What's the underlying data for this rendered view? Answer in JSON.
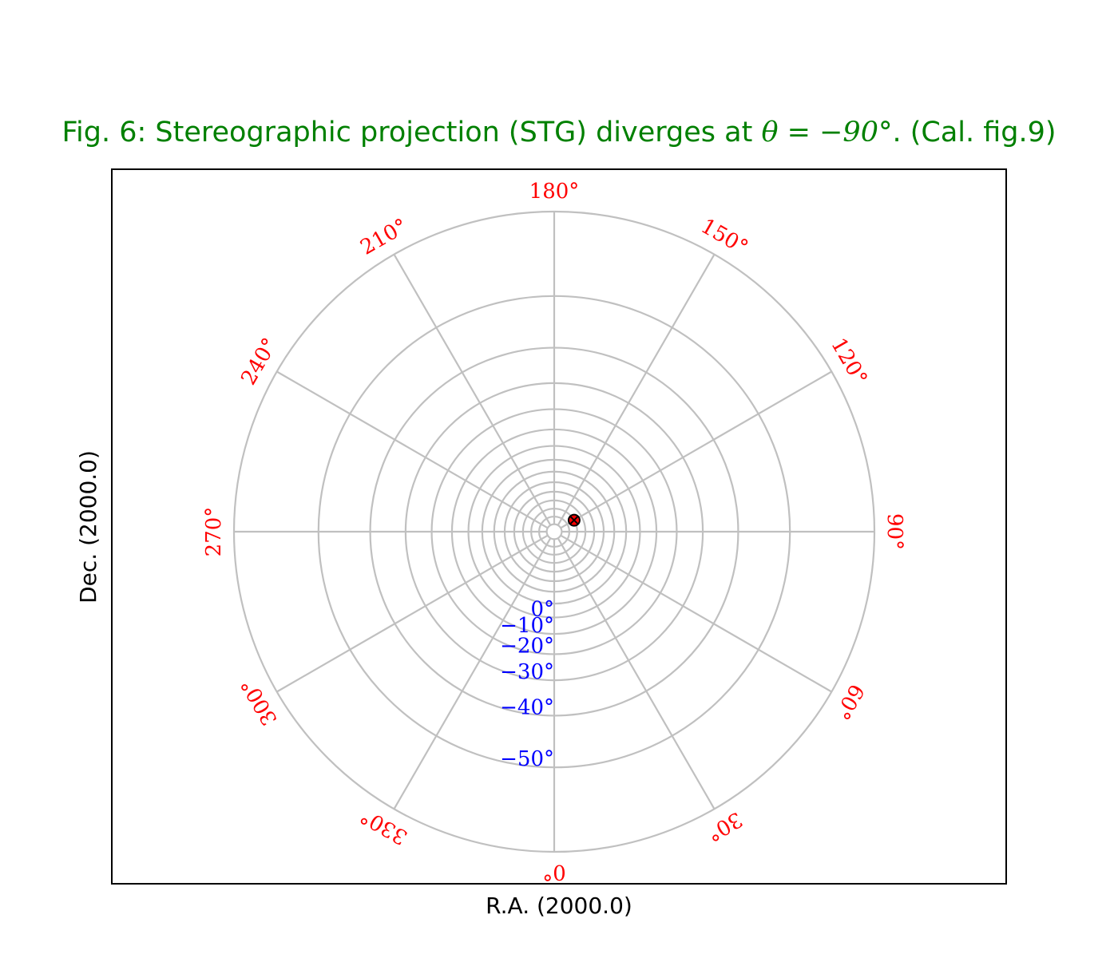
{
  "title": {
    "prefix": "Fig. 6: Stereographic projection (STG) diverges at ",
    "math": "θ = −90°",
    "suffix": ". (Cal. fig.9)"
  },
  "chart_data": {
    "type": "polar-graticule",
    "projection": "STG",
    "xlabel": "R.A. (2000.0)",
    "ylabel": "Dec. (2000.0)",
    "grid": true,
    "grid_color": "#c0c0c0",
    "title_color": "#008000",
    "ra_label_color": "#ff0000",
    "dec_label_color": "#0000ff",
    "ra_meridians": [
      0,
      30,
      60,
      90,
      120,
      150,
      180,
      210,
      240,
      270,
      300,
      330
    ],
    "ra_labels": [
      "0°",
      "30°",
      "60°",
      "90°",
      "120°",
      "150°",
      "180°",
      "210°",
      "240°",
      "270°",
      "300°",
      "330°"
    ],
    "dec_parallels": [
      -60,
      -50,
      -40,
      -30,
      -20,
      -10,
      0,
      10,
      20,
      30,
      40,
      50,
      60,
      70,
      80
    ],
    "dec_labels": [
      {
        "dec": 0,
        "text": "0°"
      },
      {
        "dec": -10,
        "text": "−10°"
      },
      {
        "dec": -20,
        "text": "−20°"
      },
      {
        "dec": -30,
        "text": "−30°"
      },
      {
        "dec": -40,
        "text": "−40°"
      },
      {
        "dec": -50,
        "text": "−50°"
      }
    ],
    "markers": [
      {
        "ra": 120,
        "dec": 60,
        "fill": "#ff0000",
        "edge": "#000000"
      }
    ]
  }
}
